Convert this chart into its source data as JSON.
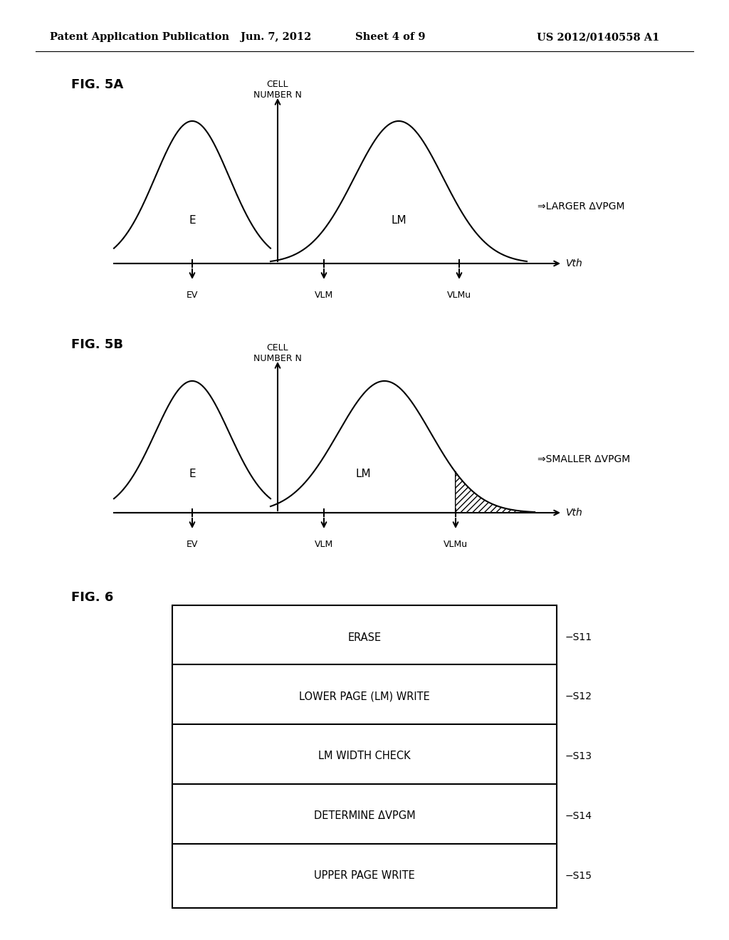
{
  "bg_color": "#ffffff",
  "header_text": "Patent Application Publication",
  "header_date": "Jun. 7, 2012",
  "header_sheet": "Sheet 4 of 9",
  "header_patent": "US 2012/0140558 A1",
  "fig5a_label": "FIG. 5A",
  "fig5b_label": "FIG. 5B",
  "fig6_label": "FIG. 6",
  "y_axis_label_line1": "CELL",
  "y_axis_label_line2": "NUMBER N",
  "x_axis_label": "Vth",
  "ev_label": "EV",
  "vlm_label": "VLM",
  "vlmu_label": "VLMu",
  "e_label": "E",
  "lm_label": "LM",
  "larger_label": "⇒LARGER ΔVPGM",
  "smaller_label": "⇒SMALLER ΔVPGM",
  "flow_boxes": [
    "ERASE",
    "LOWER PAGE (LM) WRITE",
    "LM WIDTH CHECK",
    "DETERMINE ΔVPGM",
    "UPPER PAGE WRITE"
  ],
  "flow_labels": [
    "−S11",
    "−S12",
    "−S13",
    "−S14",
    "−S15"
  ]
}
